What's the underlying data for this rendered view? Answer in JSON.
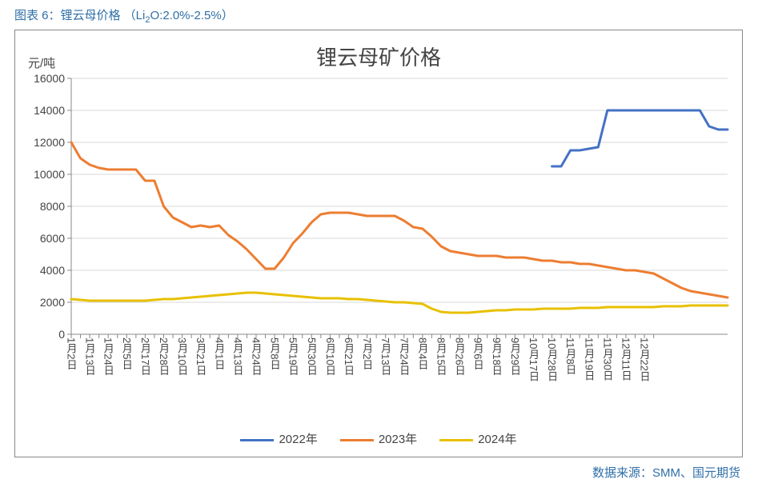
{
  "caption_prefix": "图表 6：锂云母价格 （Li",
  "caption_sub": "2",
  "caption_suffix": "O:2.0%-2.5%）",
  "source_text": "数据来源：SMM、国元期货",
  "chart": {
    "type": "line",
    "title": "锂云母矿价格",
    "title_fontsize": 26,
    "y_unit": "元/吨",
    "background_color": "#ffffff",
    "border_color": "#888888",
    "axis_color": "#888888",
    "grid_color": "#d9d9d9",
    "grid": true,
    "line_width": 3,
    "label_fontsize": 14,
    "tick_fontsize": 13,
    "ylim": [
      0,
      16000
    ],
    "ytick_step": 2000,
    "yticks": [
      0,
      2000,
      4000,
      6000,
      8000,
      10000,
      12000,
      14000,
      16000
    ],
    "x_count": 72,
    "x_labels": [
      "1月2日",
      "",
      "1月13日",
      "",
      "1月24日",
      "",
      "2月5日",
      "",
      "2月17日",
      "",
      "2月28日",
      "",
      "3月10日",
      "",
      "3月21日",
      "",
      "4月1日",
      "",
      "4月13日",
      "",
      "4月24日",
      "",
      "5月8日",
      "",
      "5月19日",
      "",
      "5月30日",
      "",
      "6月10日",
      "",
      "6月21日",
      "",
      "7月2日",
      "",
      "7月13日",
      "",
      "7月24日",
      "",
      "8月4日",
      "",
      "8月15日",
      "",
      "8月26日",
      "",
      "9月6日",
      "",
      "9月18日",
      "",
      "9月29日",
      "",
      "10月17日",
      "",
      "10月28日",
      "",
      "11月8日",
      "",
      "11月19日",
      "",
      "11月30日",
      "",
      "12月11日",
      "",
      "12月22日",
      ""
    ],
    "legend_position": "bottom",
    "series": [
      {
        "name": "2022年",
        "color": "#4472c4",
        "start": 52,
        "values": [
          10500,
          10500,
          11500,
          11500,
          11600,
          11700,
          14000,
          14000,
          14000,
          14000,
          14000,
          14000,
          14000,
          14000,
          14000,
          14000,
          14000,
          13000,
          12800,
          12800
        ]
      },
      {
        "name": "2023年",
        "color": "#ed7d31",
        "start": 0,
        "values": [
          12000,
          11000,
          10600,
          10400,
          10300,
          10300,
          10300,
          10300,
          9600,
          9600,
          8000,
          7300,
          7000,
          6700,
          6800,
          6700,
          6800,
          6200,
          5800,
          5300,
          4700,
          4100,
          4100,
          4800,
          5700,
          6300,
          7000,
          7500,
          7600,
          7600,
          7600,
          7500,
          7400,
          7400,
          7400,
          7400,
          7100,
          6700,
          6600,
          6100,
          5500,
          5200,
          5100,
          5000,
          4900,
          4900,
          4900,
          4800,
          4800,
          4800,
          4700,
          4600,
          4600,
          4500,
          4500,
          4400,
          4400,
          4300,
          4200,
          4100,
          4000,
          4000,
          3900,
          3800,
          3500,
          3200,
          2900,
          2700,
          2600,
          2500,
          2400,
          2300
        ]
      },
      {
        "name": "2024年",
        "color": "#e8c000",
        "start": 0,
        "values": [
          2200,
          2150,
          2100,
          2100,
          2100,
          2100,
          2100,
          2100,
          2100,
          2150,
          2200,
          2200,
          2250,
          2300,
          2350,
          2400,
          2450,
          2500,
          2550,
          2600,
          2600,
          2550,
          2500,
          2450,
          2400,
          2350,
          2300,
          2250,
          2250,
          2250,
          2200,
          2200,
          2150,
          2100,
          2050,
          2000,
          2000,
          1950,
          1900,
          1600,
          1400,
          1350,
          1350,
          1350,
          1400,
          1450,
          1500,
          1500,
          1550,
          1550,
          1550,
          1600,
          1600,
          1600,
          1600,
          1650,
          1650,
          1650,
          1700,
          1700,
          1700,
          1700,
          1700,
          1700,
          1750,
          1750,
          1750,
          1800,
          1800,
          1800,
          1800,
          1800
        ]
      }
    ]
  }
}
